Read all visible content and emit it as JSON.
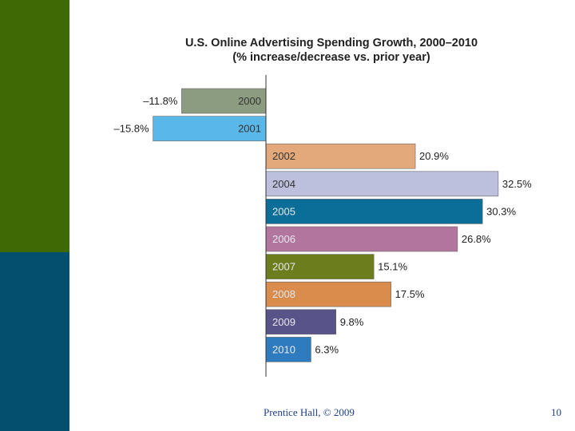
{
  "chart_data": {
    "type": "bar",
    "orientation": "horizontal",
    "title": "U.S. Online Advertising Spending Growth, 2000–2010",
    "subtitle": "(% increase/decrease vs. prior year)",
    "categories": [
      "2000",
      "2001",
      "2002",
      "2004",
      "2005",
      "2006",
      "2007",
      "2008",
      "2009",
      "2010"
    ],
    "values": [
      -11.8,
      -15.8,
      20.9,
      32.5,
      30.3,
      26.8,
      15.1,
      17.5,
      9.8,
      6.3
    ],
    "value_labels": [
      "–11.8%",
      "–15.8%",
      "20.9%",
      "32.5%",
      "30.3%",
      "26.8%",
      "15.1%",
      "17.5%",
      "9.8%",
      "6.3%"
    ],
    "colors": [
      "#8c9c80",
      "#5ab8e8",
      "#e3a97a",
      "#bcc0dc",
      "#0a6e98",
      "#b2769e",
      "#6b7d1c",
      "#d98c4c",
      "#58548a",
      "#2f7bbf"
    ],
    "xlabel": "",
    "ylabel": "",
    "xlim": [
      -20,
      35
    ],
    "grid": false
  },
  "footer": {
    "credit": "Prentice Hall, © 2009",
    "page": "10"
  }
}
